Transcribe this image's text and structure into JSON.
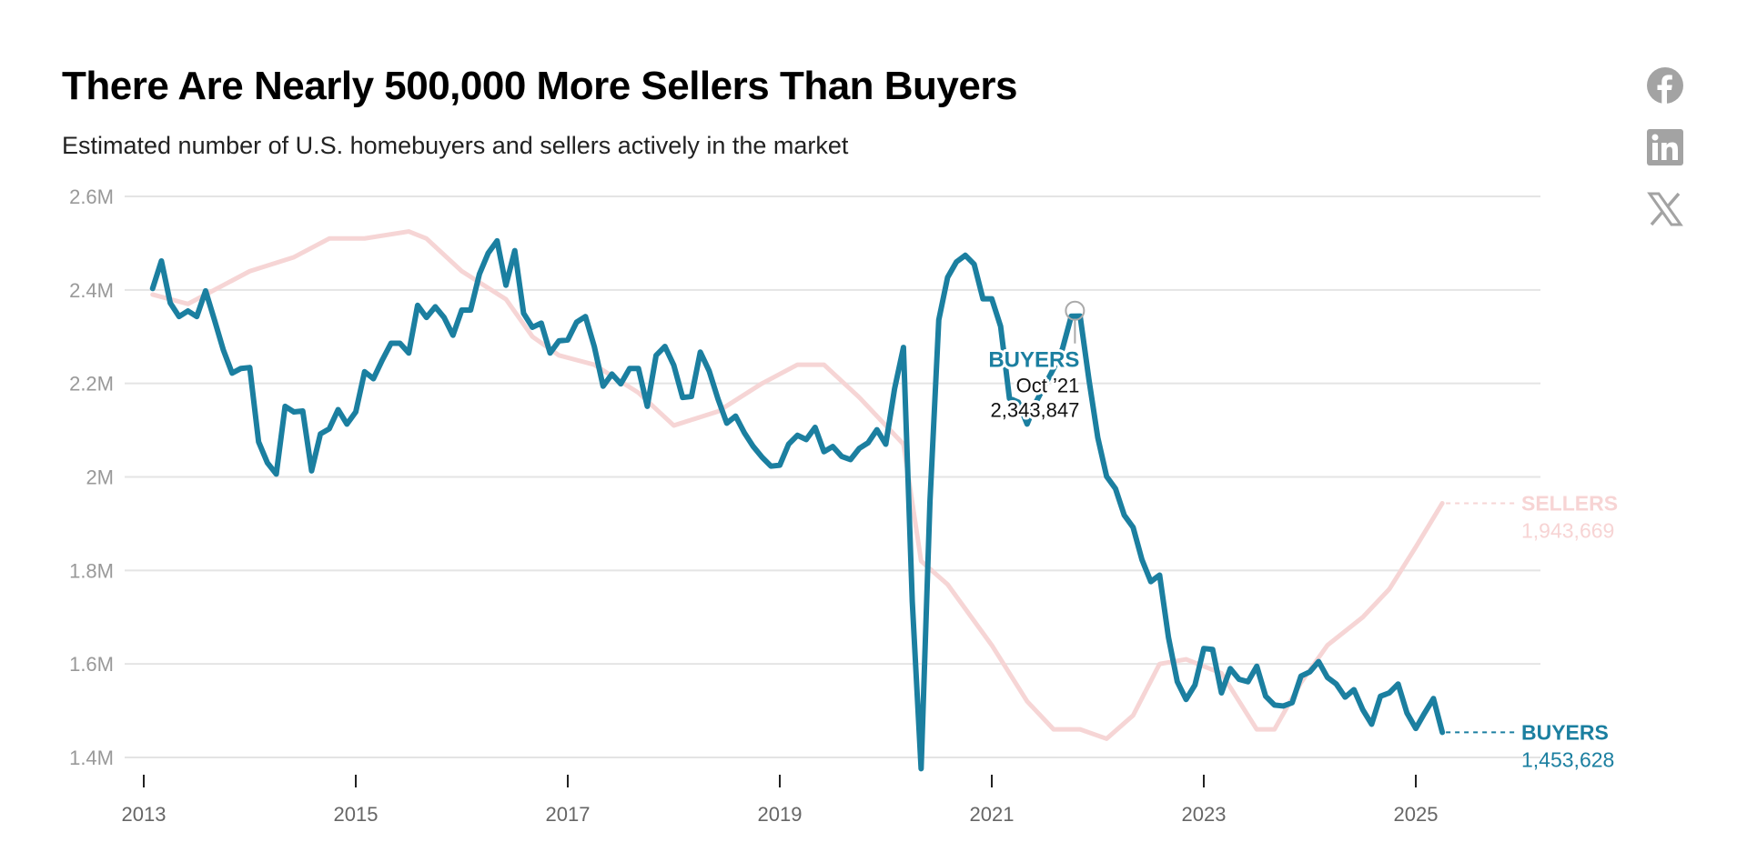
{
  "header": {
    "title": "There Are Nearly 500,000 More Sellers Than Buyers",
    "subtitle": "Estimated number of U.S. homebuyers and sellers actively in the market"
  },
  "social": [
    {
      "name": "facebook-icon",
      "label": "Facebook"
    },
    {
      "name": "linkedin-icon",
      "label": "LinkedIn"
    },
    {
      "name": "x-icon",
      "label": "X"
    }
  ],
  "colors": {
    "buyers": "#1b7fa0",
    "sellers": "#f6d5d5",
    "sellers_label": "#f7d4d4",
    "grid": "#e4e4e4",
    "axis_text": "#999999"
  },
  "chart_data": {
    "type": "line",
    "title": "There Are Nearly 500,000 More Sellers Than Buyers",
    "subtitle": "Estimated number of U.S. homebuyers and sellers actively in the market",
    "xlabel": "",
    "ylabel": "",
    "ylim": [
      1400000,
      2600000
    ],
    "yticks": [
      1400000,
      1600000,
      1800000,
      2000000,
      2200000,
      2400000,
      2600000
    ],
    "ytick_labels": [
      "1.4M",
      "1.6M",
      "1.8M",
      "2M",
      "2.2M",
      "2.4M",
      "2.6M"
    ],
    "xlim": [
      2013.0,
      2026.0
    ],
    "xticks": [
      2013,
      2015,
      2017,
      2019,
      2021,
      2023,
      2025
    ],
    "xtick_labels": [
      "2013",
      "2015",
      "2017",
      "2019",
      "2021",
      "2023",
      "2025"
    ],
    "grid": true,
    "legend": "direct labels at line ends (right)",
    "series": [
      {
        "name": "SELLERS",
        "end_label": "SELLERS",
        "end_value_label": "1,943,669",
        "end_value": 1943669,
        "start": "2013-02",
        "frequency": "monthly (smoothed, key points)",
        "points": [
          [
            "2013-02",
            2390000
          ],
          [
            "2013-06",
            2370000
          ],
          [
            "2013-09",
            2400000
          ],
          [
            "2014-01",
            2440000
          ],
          [
            "2014-06",
            2470000
          ],
          [
            "2014-10",
            2510000
          ],
          [
            "2015-02",
            2510000
          ],
          [
            "2015-07",
            2525000
          ],
          [
            "2015-09",
            2510000
          ],
          [
            "2016-01",
            2440000
          ],
          [
            "2016-06",
            2380000
          ],
          [
            "2016-09",
            2300000
          ],
          [
            "2016-12",
            2260000
          ],
          [
            "2017-04",
            2240000
          ],
          [
            "2017-09",
            2180000
          ],
          [
            "2018-01",
            2110000
          ],
          [
            "2018-06",
            2140000
          ],
          [
            "2018-11",
            2200000
          ],
          [
            "2019-03",
            2240000
          ],
          [
            "2019-06",
            2240000
          ],
          [
            "2019-10",
            2170000
          ],
          [
            "2020-03",
            2070000
          ],
          [
            "2020-05",
            1820000
          ],
          [
            "2020-08",
            1770000
          ],
          [
            "2021-01",
            1640000
          ],
          [
            "2021-05",
            1520000
          ],
          [
            "2021-08",
            1460000
          ],
          [
            "2021-11",
            1460000
          ],
          [
            "2022-02",
            1440000
          ],
          [
            "2022-05",
            1490000
          ],
          [
            "2022-08",
            1600000
          ],
          [
            "2022-11",
            1610000
          ],
          [
            "2023-03",
            1580000
          ],
          [
            "2023-07",
            1460000
          ],
          [
            "2023-09",
            1460000
          ],
          [
            "2023-12",
            1560000
          ],
          [
            "2024-03",
            1640000
          ],
          [
            "2024-07",
            1700000
          ],
          [
            "2024-10",
            1760000
          ],
          [
            "2025-01",
            1850000
          ],
          [
            "2025-04",
            1943669
          ]
        ]
      },
      {
        "name": "BUYERS",
        "end_label": "BUYERS",
        "end_value_label": "1,453,628",
        "end_value": 1453628,
        "start": "2013-02",
        "frequency": "monthly",
        "values": [
          2403000,
          2462000,
          2372000,
          2343000,
          2355000,
          2343000,
          2398000,
          2336000,
          2272000,
          2222000,
          2232000,
          2234000,
          2075000,
          2030000,
          2006000,
          2151000,
          2139000,
          2141000,
          2013000,
          2092000,
          2103000,
          2144000,
          2113000,
          2139000,
          2225000,
          2210000,
          2250000,
          2286000,
          2286000,
          2265000,
          2367000,
          2341000,
          2364000,
          2341000,
          2303000,
          2357000,
          2357000,
          2434000,
          2479000,
          2505000,
          2410000,
          2484000,
          2350000,
          2320000,
          2329000,
          2265000,
          2291000,
          2293000,
          2331000,
          2343000,
          2279000,
          2194000,
          2220000,
          2199000,
          2232000,
          2232000,
          2151000,
          2260000,
          2279000,
          2239000,
          2170000,
          2172000,
          2267000,
          2227000,
          2167000,
          2115000,
          2130000,
          2094000,
          2065000,
          2042000,
          2023000,
          2025000,
          2070000,
          2089000,
          2080000,
          2106000,
          2054000,
          2065000,
          2044000,
          2037000,
          2061000,
          2073000,
          2101000,
          2070000,
          2189000,
          2277000,
          1733000,
          1376000,
          1947000,
          2336000,
          2427000,
          2460000,
          2474000,
          2455000,
          2381000,
          2381000,
          2322000,
          2168000,
          2160000,
          2113000,
          2160000,
          2196000,
          2232000,
          2274000,
          2343847,
          2344000,
          2208000,
          2084000,
          2001000,
          1975000,
          1918000,
          1892000,
          1823000,
          1776000,
          1790000,
          1657000,
          1562000,
          1524000,
          1555000,
          1633000,
          1631000,
          1538000,
          1590000,
          1567000,
          1562000,
          1595000,
          1531000,
          1512000,
          1510000,
          1517000,
          1574000,
          1583000,
          1605000,
          1571000,
          1557000,
          1529000,
          1545000,
          1502000,
          1471000,
          1531000,
          1538000,
          1557000,
          1495000,
          1462000,
          1495000,
          1526000,
          1453628
        ]
      }
    ],
    "annotations": [
      {
        "series": "BUYERS",
        "date": "2021-10",
        "label": "BUYERS",
        "date_label": "Oct ’21",
        "value_label": "2,343,847",
        "value": 2343847
      }
    ]
  }
}
